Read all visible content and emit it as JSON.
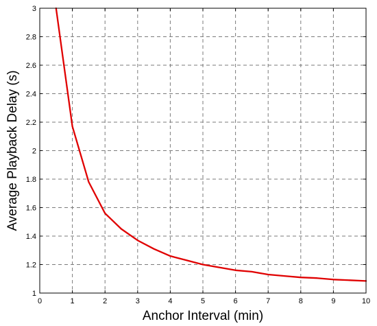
{
  "chart_data": {
    "type": "line",
    "title": "",
    "xlabel": "Anchor Interval (min)",
    "ylabel": "Average Playback Delay (s)",
    "xlim": [
      0,
      10
    ],
    "ylim": [
      1,
      3
    ],
    "xticks": [
      0,
      1,
      2,
      3,
      4,
      5,
      6,
      7,
      8,
      9,
      10
    ],
    "yticks": [
      1,
      1.2,
      1.4,
      1.6,
      1.8,
      2,
      2.2,
      2.4,
      2.6,
      2.8,
      3
    ],
    "grid": true,
    "series": [
      {
        "color": "#e00000",
        "x": [
          0.5,
          1,
          1.5,
          2,
          2.5,
          3,
          3.5,
          4,
          4.5,
          5,
          5.5,
          6,
          6.5,
          7,
          7.5,
          8,
          8.5,
          9,
          9.5,
          10
        ],
        "y": [
          3.0,
          2.17,
          1.78,
          1.56,
          1.45,
          1.37,
          1.31,
          1.26,
          1.23,
          1.2,
          1.18,
          1.16,
          1.15,
          1.13,
          1.12,
          1.11,
          1.105,
          1.095,
          1.09,
          1.085
        ]
      }
    ]
  }
}
